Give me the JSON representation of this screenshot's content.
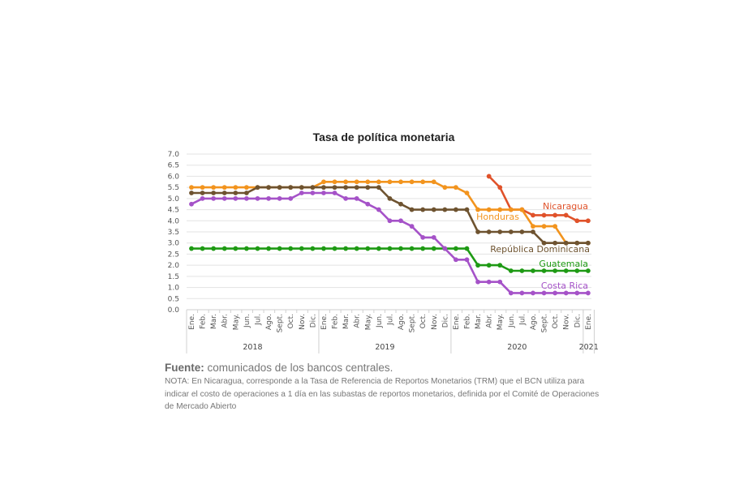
{
  "source": {
    "label": "Fuente:",
    "text": "comunicados de los bancos centrales."
  },
  "note": "NOTA: En Nicaragua, corresponde a la Tasa de Referencia de Reportos Monetarios (TRM) que el BCN utiliza para indicar el costo de operaciones a 1 día en las subastas de reportos monetarios, definida por el Comité de Operaciones de Mercado Abierto",
  "chart_data": {
    "type": "line",
    "title": "Tasa de política monetaria",
    "ylim": [
      0,
      7
    ],
    "yticks": [
      "0.0",
      "0.5",
      "1.0",
      "1.5",
      "2.0",
      "2.5",
      "3.0",
      "3.5",
      "4.0",
      "4.5",
      "5.0",
      "5.5",
      "6.0",
      "6.5",
      "7.0"
    ],
    "grid": true,
    "categories": [
      "Ene.",
      "Feb.",
      "Mar.",
      "Abr.",
      "May.",
      "Jun.",
      "Jul.",
      "Ago.",
      "Sept.",
      "Oct.",
      "Nov.",
      "Dic.",
      "Ene.",
      "Feb.",
      "Mar.",
      "Abr.",
      "May.",
      "Jun.",
      "Jul.",
      "Ago.",
      "Sept.",
      "Oct.",
      "Nov.",
      "Dic.",
      "Ene.",
      "Feb.",
      "Mar.",
      "Abr.",
      "May.",
      "Jun.",
      "Jul.",
      "Ago.",
      "Sept.",
      "Oct.",
      "Nov.",
      "Dic.",
      "Ene."
    ],
    "years": [
      {
        "label": "2018",
        "start": 0,
        "end": 11
      },
      {
        "label": "2019",
        "start": 12,
        "end": 23
      },
      {
        "label": "2020",
        "start": 24,
        "end": 35
      },
      {
        "label": "2021",
        "start": 36,
        "end": 36
      }
    ],
    "series": [
      {
        "name": "Nicaragua",
        "color": "#E0522A",
        "values": [
          null,
          null,
          null,
          null,
          null,
          null,
          null,
          null,
          null,
          null,
          null,
          null,
          null,
          null,
          null,
          null,
          null,
          null,
          null,
          null,
          null,
          null,
          null,
          null,
          null,
          null,
          null,
          6.0,
          5.5,
          4.5,
          4.5,
          4.25,
          4.25,
          4.25,
          4.25,
          4.0,
          4.0
        ]
      },
      {
        "name": "Honduras",
        "color": "#F2941E",
        "values": [
          5.5,
          5.5,
          5.5,
          5.5,
          5.5,
          5.5,
          5.5,
          5.5,
          5.5,
          5.5,
          5.5,
          5.5,
          5.75,
          5.75,
          5.75,
          5.75,
          5.75,
          5.75,
          5.75,
          5.75,
          5.75,
          5.75,
          5.75,
          5.5,
          5.5,
          5.25,
          4.5,
          4.5,
          4.5,
          4.5,
          4.5,
          3.75,
          3.75,
          3.75,
          3.0,
          3.0,
          3.0
        ]
      },
      {
        "name": "República Dominicana",
        "color": "#6E5330",
        "values": [
          5.25,
          5.25,
          5.25,
          5.25,
          5.25,
          5.25,
          5.5,
          5.5,
          5.5,
          5.5,
          5.5,
          5.5,
          5.5,
          5.5,
          5.5,
          5.5,
          5.5,
          5.5,
          5.0,
          4.75,
          4.5,
          4.5,
          4.5,
          4.5,
          4.5,
          4.5,
          3.5,
          3.5,
          3.5,
          3.5,
          3.5,
          3.5,
          3.0,
          3.0,
          3.0,
          3.0,
          3.0
        ]
      },
      {
        "name": "Guatemala",
        "color": "#1E9A14",
        "values": [
          2.75,
          2.75,
          2.75,
          2.75,
          2.75,
          2.75,
          2.75,
          2.75,
          2.75,
          2.75,
          2.75,
          2.75,
          2.75,
          2.75,
          2.75,
          2.75,
          2.75,
          2.75,
          2.75,
          2.75,
          2.75,
          2.75,
          2.75,
          2.75,
          2.75,
          2.75,
          2.0,
          2.0,
          2.0,
          1.75,
          1.75,
          1.75,
          1.75,
          1.75,
          1.75,
          1.75,
          1.75
        ]
      },
      {
        "name": "Costa Rica",
        "color": "#A552C8",
        "values": [
          4.75,
          5.0,
          5.0,
          5.0,
          5.0,
          5.0,
          5.0,
          5.0,
          5.0,
          5.0,
          5.25,
          5.25,
          5.25,
          5.25,
          5.0,
          5.0,
          4.75,
          4.5,
          4.0,
          4.0,
          3.75,
          3.25,
          3.25,
          2.75,
          2.25,
          2.25,
          1.25,
          1.25,
          1.25,
          0.75,
          0.75,
          0.75,
          0.75,
          0.75,
          0.75,
          0.75,
          0.75
        ]
      }
    ]
  }
}
